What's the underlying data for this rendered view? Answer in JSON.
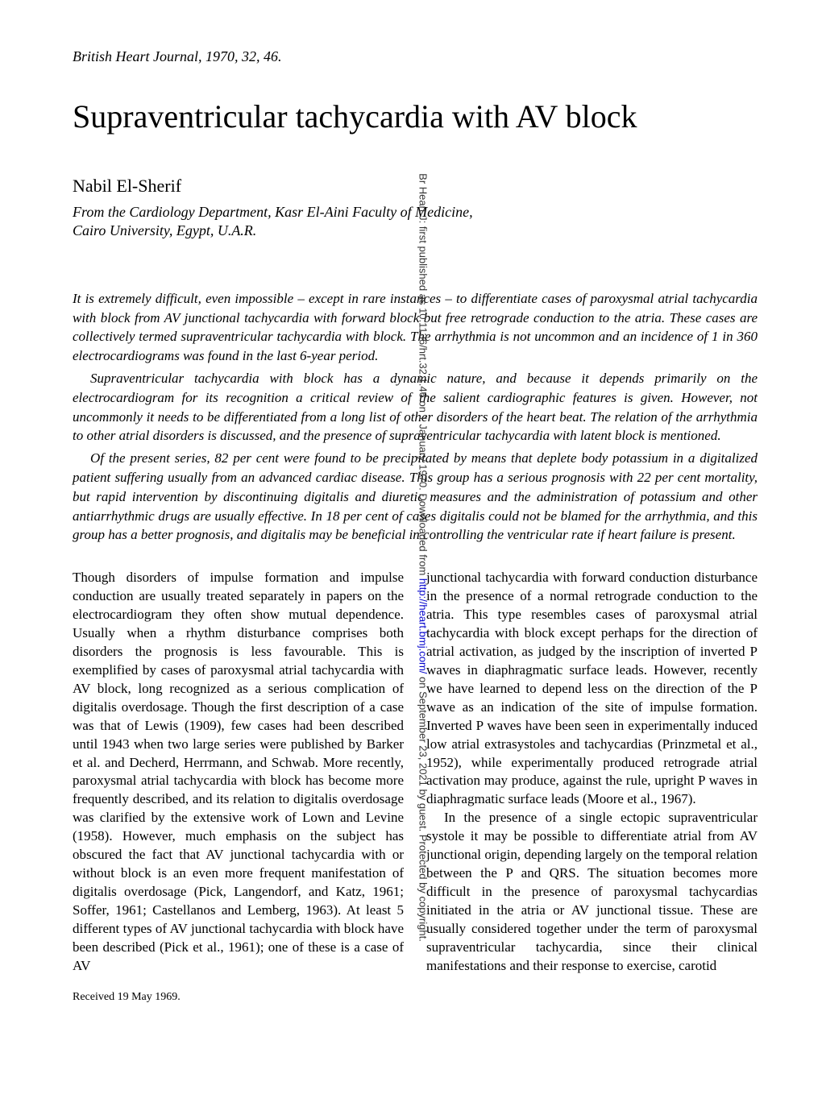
{
  "journal_reference": "British Heart Journal, 1970, 32, 46.",
  "title": "Supraventricular tachycardia with AV block",
  "author": "Nabil El-Sherif",
  "affiliation_line1": "From the Cardiology Department, Kasr El-Aini Faculty of Medicine,",
  "affiliation_line2": "Cairo University, Egypt, U.A.R.",
  "abstract": {
    "p1": "It is extremely difficult, even impossible – except in rare instances – to differentiate cases of paroxysmal atrial tachycardia with block from AV junctional tachycardia with forward block but free retrograde conduction to the atria. These cases are collectively termed supraventricular tachycardia with block. The arrhythmia is not uncommon and an incidence of 1 in 360 electrocardiograms was found in the last 6-year period.",
    "p2": "Supraventricular tachycardia with block has a dynamic nature, and because it depends primarily on the electrocardiogram for its recognition a critical review of the salient cardiographic features is given. However, not uncommonly it needs to be differentiated from a long list of other disorders of the heart beat. The relation of the arrhythmia to other atrial disorders is discussed, and the presence of supraventricular tachycardia with latent block is mentioned.",
    "p3": "Of the present series, 82 per cent were found to be precipitated by means that deplete body potassium in a digitalized patient suffering usually from an advanced cardiac disease. This group has a serious prognosis with 22 per cent mortality, but rapid intervention by discontinuing digitalis and diuretic measures and the administration of potassium and other antiarrhythmic drugs are usually effective. In 18 per cent of cases digitalis could not be blamed for the arrhythmia, and this group has a better prognosis, and digitalis may be beneficial in controlling the ventricular rate if heart failure is present."
  },
  "body": {
    "col1_p1": "Though disorders of impulse formation and impulse conduction are usually treated separately in papers on the electrocardiogram they often show mutual dependence. Usually when a rhythm disturbance comprises both disorders the prognosis is less favourable. This is exemplified by cases of paroxysmal atrial tachycardia with AV block, long recognized as a serious complication of digitalis overdosage. Though the first description of a case was that of Lewis (1909), few cases had been described until 1943 when two large series were published by Barker et al. and Decherd, Herrmann, and Schwab. More recently, paroxysmal atrial tachycardia with block has become more frequently described, and its relation to digitalis overdosage was clarified by the extensive work of Lown and Levine (1958). However, much emphasis on the subject has obscured the fact that AV junctional tachycardia with or without block is an even more frequent manifestation of digitalis overdosage (Pick, Langendorf, and Katz, 1961; Soffer, 1961; Castellanos and Lemberg, 1963). At least 5 different types of AV junctional tachycardia with block have been described (Pick et al., 1961); one of these is a case of AV",
    "col2_p1": "junctional tachycardia with forward conduction disturbance in the presence of a normal retrograde conduction to the atria. This type resembles cases of paroxysmal atrial tachycardia with block except perhaps for the direction of atrial activation, as judged by the inscription of inverted P waves in diaphragmatic surface leads. However, recently we have learned to depend less on the direction of the P wave as an indication of the site of impulse formation. Inverted P waves have been seen in experimentally induced low atrial extrasystoles and tachycardias (Prinzmetal et al., 1952), while experimentally produced retrograde atrial activation may produce, against the rule, upright P waves in diaphragmatic surface leads (Moore et al., 1967).",
    "col2_p2": "In the presence of a single ectopic supraventricular systole it may be possible to differentiate atrial from AV junctional origin, depending largely on the temporal relation between the P and QRS. The situation becomes more difficult in the presence of paroxysmal tachycardias initiated in the atria or AV junctional tissue. These are usually considered together under the term of paroxysmal supraventricular tachycardia, since their clinical manifestations and their response to exercise, carotid"
  },
  "received": "Received 19 May 1969.",
  "sidebar": {
    "prefix": "Br Heart J: first published as 10.1136/hrt.32.1.46 on 1 January 1970. Downloaded from ",
    "link": "http://heart.bmj.com/",
    "suffix": " on September 23, 2021 by guest. Protected by copyright."
  }
}
